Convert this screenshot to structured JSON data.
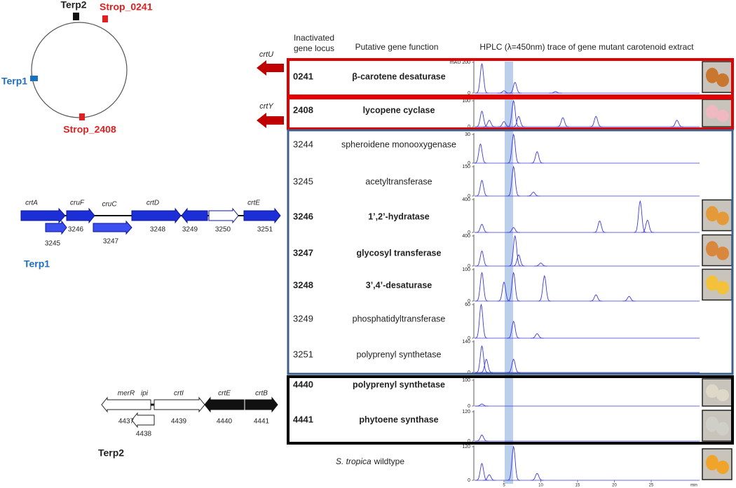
{
  "genome": {
    "terp2": "Terp2",
    "strop_0241": "Strop_0241",
    "terp1": "Terp1",
    "strop_2408": "Strop_2408"
  },
  "side_genes": [
    "crtU",
    "crtY"
  ],
  "terp1_cluster": {
    "genes": [
      "crtA",
      "cruF",
      "cruC",
      "crtD",
      "crtE"
    ],
    "loci": [
      "3245",
      "3246",
      "3247",
      "3248",
      "3249",
      "3250",
      "3251"
    ],
    "label": "Terp1"
  },
  "terp2_cluster": {
    "genes": [
      "merR",
      "ipi",
      "crtI",
      "crtE",
      "crtB"
    ],
    "loci": [
      "4437",
      "4438",
      "4439",
      "4440",
      "4441"
    ],
    "label": "Terp2"
  },
  "headers": {
    "locus": "Inactivated gene locus",
    "function": "Putative gene function",
    "trace": "HPLC (λ=450nm) trace of gene mutant carotenoid extract"
  },
  "x_axis": {
    "lim": [
      1,
      31
    ],
    "ticks": [
      5,
      10,
      15,
      20,
      25
    ],
    "unit": "min"
  },
  "rows": [
    {
      "locus": "0241",
      "function": "β-carotene desaturase",
      "bold": true,
      "yticks": [
        0,
        {
          "value": 200,
          "label": "mAU 200"
        }
      ],
      "peaks": [
        {
          "t": 2,
          "h": 190
        },
        {
          "t": 5,
          "h": 15
        },
        {
          "t": 6.5,
          "h": 70
        },
        {
          "t": 12,
          "h": 10
        }
      ]
    },
    {
      "locus": "2408",
      "function": "lycopene cyclase",
      "bold": true,
      "yticks": [
        0,
        100
      ],
      "peaks": [
        {
          "t": 2,
          "h": 60
        },
        {
          "t": 3,
          "h": 25
        },
        {
          "t": 5,
          "h": 20
        },
        {
          "t": 6.3,
          "h": 100
        },
        {
          "t": 7,
          "h": 40
        },
        {
          "t": 13,
          "h": 35
        },
        {
          "t": 17.5,
          "h": 40
        },
        {
          "t": 28.5,
          "h": 25
        }
      ]
    },
    {
      "locus": "3244",
      "function": "spheroidene  monooxygenase",
      "bold": false,
      "yticks": [
        0,
        30
      ],
      "peaks": [
        {
          "t": 1.8,
          "h": 20
        },
        {
          "t": 6.3,
          "h": 30
        },
        {
          "t": 9.5,
          "h": 12
        }
      ]
    },
    {
      "locus": "3245",
      "function": "acetyltransferase",
      "bold": false,
      "yticks": [
        0,
        150
      ],
      "peaks": [
        {
          "t": 2,
          "h": 80
        },
        {
          "t": 6.3,
          "h": 150
        },
        {
          "t": 9,
          "h": 20
        }
      ]
    },
    {
      "locus": "3246",
      "function": "1’,2’-hydratase",
      "bold": true,
      "yticks": [
        0,
        400
      ],
      "peaks": [
        {
          "t": 2,
          "h": 100
        },
        {
          "t": 6.3,
          "h": 60
        },
        {
          "t": 18,
          "h": 140
        },
        {
          "t": 23.5,
          "h": 380
        },
        {
          "t": 24.5,
          "h": 150
        }
      ]
    },
    {
      "locus": "3247",
      "function": "glycosyl transferase",
      "bold": true,
      "yticks": [
        0,
        400
      ],
      "peaks": [
        {
          "t": 2,
          "h": 200
        },
        {
          "t": 6.5,
          "h": 400
        },
        {
          "t": 7,
          "h": 150
        },
        {
          "t": 10,
          "h": 40
        }
      ]
    },
    {
      "locus": "3248",
      "function": "3’,4’-desaturase",
      "bold": true,
      "yticks": [
        0,
        100
      ],
      "peaks": [
        {
          "t": 2,
          "h": 90
        },
        {
          "t": 5,
          "h": 60
        },
        {
          "t": 6.3,
          "h": 90
        },
        {
          "t": 10.5,
          "h": 80
        },
        {
          "t": 17.5,
          "h": 20
        },
        {
          "t": 22,
          "h": 15
        }
      ]
    },
    {
      "locus": "3249",
      "function": "phosphatidyltransferase",
      "bold": false,
      "yticks": [
        0,
        60
      ],
      "peaks": [
        {
          "t": 1.9,
          "h": 60
        },
        {
          "t": 6.3,
          "h": 30
        },
        {
          "t": 9.5,
          "h": 8
        }
      ]
    },
    {
      "locus": "3251",
      "function": "polyprenyl synthetase",
      "bold": false,
      "yticks": [
        0,
        140
      ],
      "peaks": [
        {
          "t": 2,
          "h": 120
        },
        {
          "t": 2.6,
          "h": 60
        },
        {
          "t": 6.3,
          "h": 60
        }
      ]
    },
    {
      "locus": "4440",
      "function": "polyprenyl synthetase",
      "bold": true,
      "yticks": [
        0,
        100
      ],
      "peaks": [
        {
          "t": 2,
          "h": 8
        }
      ]
    },
    {
      "locus": "4441",
      "function": "phytoene synthase",
      "bold": true,
      "yticks": [
        0,
        120
      ],
      "peaks": [
        {
          "t": 2,
          "h": 25
        }
      ]
    }
  ],
  "wildtype": {
    "species": "S. tropica",
    "strain": "wildtype",
    "yticks": [
      0,
      120
    ],
    "peaks": [
      {
        "t": 2,
        "h": 60
      },
      {
        "t": 3,
        "h": 20
      },
      {
        "t": 6.3,
        "h": 120
      },
      {
        "t": 9.5,
        "h": 25
      }
    ]
  }
}
